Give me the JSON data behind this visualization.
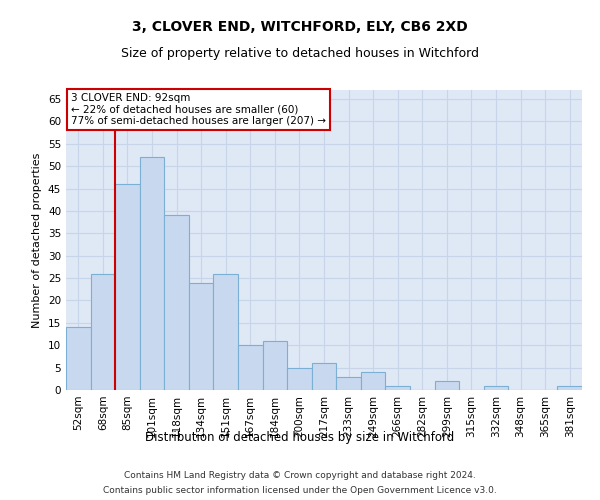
{
  "title1": "3, CLOVER END, WITCHFORD, ELY, CB6 2XD",
  "title2": "Size of property relative to detached houses in Witchford",
  "xlabel": "Distribution of detached houses by size in Witchford",
  "ylabel": "Number of detached properties",
  "categories": [
    "52sqm",
    "68sqm",
    "85sqm",
    "101sqm",
    "118sqm",
    "134sqm",
    "151sqm",
    "167sqm",
    "184sqm",
    "200sqm",
    "217sqm",
    "233sqm",
    "249sqm",
    "266sqm",
    "282sqm",
    "299sqm",
    "315sqm",
    "332sqm",
    "348sqm",
    "365sqm",
    "381sqm"
  ],
  "values": [
    14,
    26,
    46,
    52,
    39,
    24,
    26,
    10,
    11,
    5,
    6,
    3,
    4,
    1,
    0,
    2,
    0,
    1,
    0,
    0,
    1
  ],
  "bar_color": "#c8d9ef",
  "bar_edge_color": "#7bafd4",
  "grid_color": "#c8d4e8",
  "background_color": "#dfe8f5",
  "vline_color": "#cc0000",
  "vline_x_index": 2,
  "ylim": [
    0,
    67
  ],
  "yticks": [
    0,
    5,
    10,
    15,
    20,
    25,
    30,
    35,
    40,
    45,
    50,
    55,
    60,
    65
  ],
  "annotation_title": "3 CLOVER END: 92sqm",
  "annotation_line1": "← 22% of detached houses are smaller (60)",
  "annotation_line2": "77% of semi-detached houses are larger (207) →",
  "annotation_box_color": "#ffffff",
  "annotation_border_color": "#cc0000",
  "footer1": "Contains HM Land Registry data © Crown copyright and database right 2024.",
  "footer2": "Contains public sector information licensed under the Open Government Licence v3.0.",
  "title1_fontsize": 10,
  "title2_fontsize": 9,
  "xlabel_fontsize": 8.5,
  "ylabel_fontsize": 8,
  "tick_fontsize": 7.5,
  "footer_fontsize": 6.5,
  "annotation_fontsize": 7.5
}
